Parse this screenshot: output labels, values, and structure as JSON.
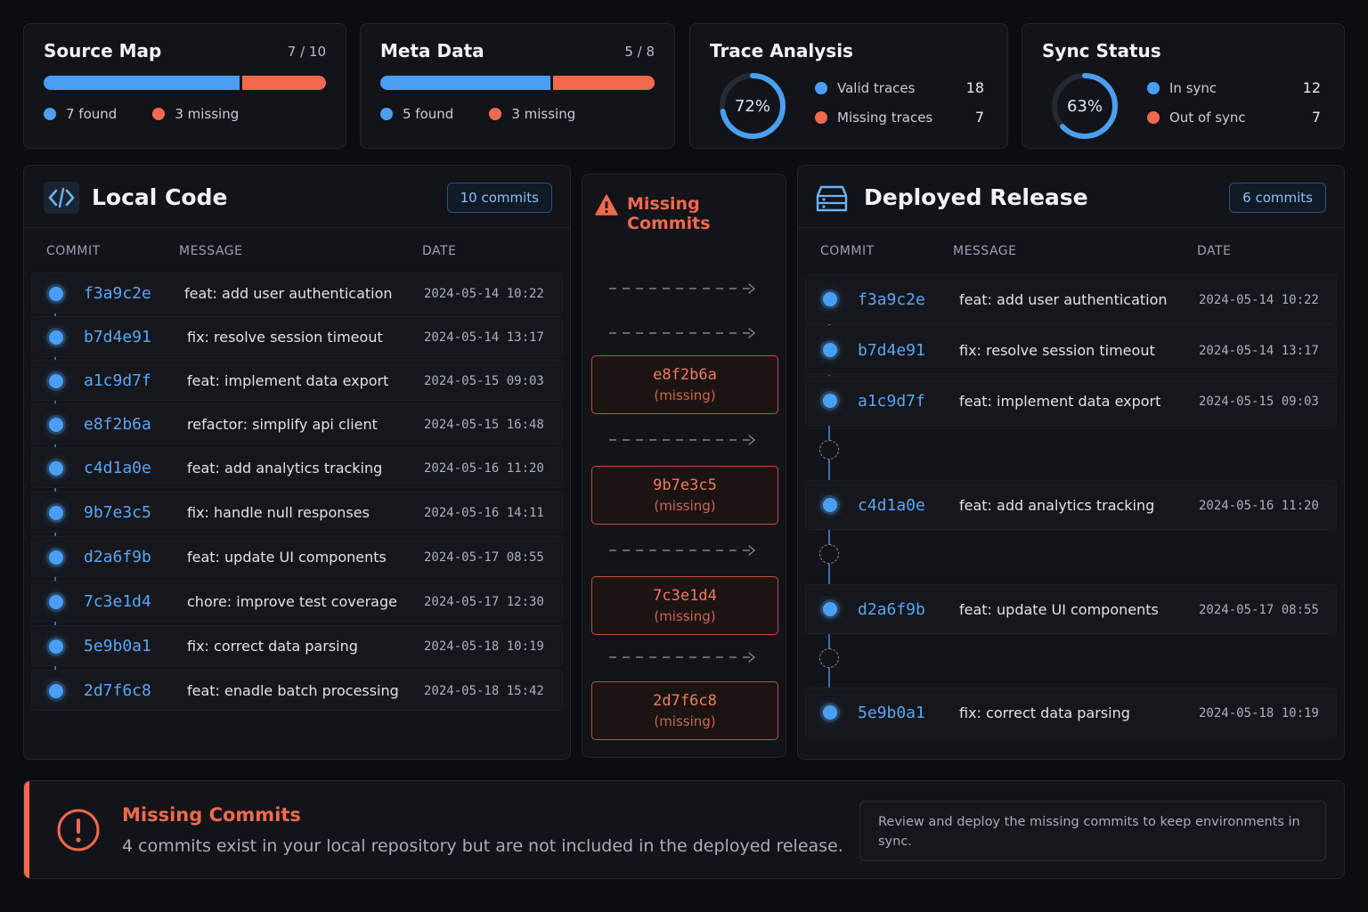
{
  "stats": {
    "source_map": {
      "title": "Source Map",
      "count": "7 / 10",
      "found": 7,
      "missing": 3,
      "found_label": "7 found",
      "missing_label": "3 missing"
    },
    "meta_data": {
      "title": "Meta Data",
      "count": "5 / 8",
      "found": 5,
      "missing": 3,
      "found_label": "5 found",
      "missing_label": "3 missing"
    },
    "trace_analysis": {
      "title": "Trace Analysis",
      "percent": 72,
      "percent_label": "72%",
      "rows": [
        {
          "label": "Valid traces",
          "value": "18"
        },
        {
          "label": "Missing traces",
          "value": "7"
        }
      ]
    },
    "sync_status": {
      "title": "Sync Status",
      "percent": 63,
      "percent_label": "63%",
      "rows": [
        {
          "label": "In sync",
          "value": "12"
        },
        {
          "label": "Out of sync",
          "value": "7"
        }
      ]
    }
  },
  "local": {
    "title": "Local Code",
    "icon": "code-icon",
    "badge": "10 commits",
    "columns": [
      "COMMIT",
      "MESSAGE",
      "DATE"
    ],
    "commits": [
      {
        "hash": "f3a9c2e",
        "message": "feat: add user authentication",
        "date": "2024-05-14 10:22"
      },
      {
        "hash": "b7d4e91",
        "message": "fix: resolve session timeout",
        "date": "2024-05-14 13:17"
      },
      {
        "hash": "a1c9d7f",
        "message": "feat: implement data export",
        "date": "2024-05-15 09:03"
      },
      {
        "hash": "e8f2b6a",
        "message": "refactor: simplify api client",
        "date": "2024-05-15 16:48"
      },
      {
        "hash": "c4d1a0e",
        "message": "feat: add analytics tracking",
        "date": "2024-05-16 11:20"
      },
      {
        "hash": "9b7e3c5",
        "message": "fix: handle null responses",
        "date": "2024-05-16 14:11"
      },
      {
        "hash": "d2a6f9b",
        "message": "feat: update UI components",
        "date": "2024-05-17 08:55"
      },
      {
        "hash": "7c3e1d4",
        "message": "chore: improve test coverage",
        "date": "2024-05-17 12:30"
      },
      {
        "hash": "5e9b0a1",
        "message": "fix: correct data parsing",
        "date": "2024-05-18 10:19"
      },
      {
        "hash": "2d7f6c8",
        "message": "feat: enadle batch processing",
        "date": "2024-05-18 15:42"
      }
    ]
  },
  "missing": {
    "title": "Missing Commits",
    "icon": "warning-icon",
    "items": [
      {
        "hash": "e8f2b6a",
        "status": "(missing)"
      },
      {
        "hash": "9b7e3c5",
        "status": "(missing)"
      },
      {
        "hash": "7c3e1d4",
        "status": "(missing)"
      },
      {
        "hash": "2d7f6c8",
        "status": "(missing)"
      }
    ]
  },
  "deployed": {
    "title": "Deployed Release",
    "icon": "server-icon",
    "badge": "6 commits",
    "columns": [
      "COMMIT",
      "MESSAGE",
      "DATE"
    ],
    "commits": [
      {
        "hash": "f3a9c2e",
        "message": "feat: add user authentication",
        "date": "2024-05-14 10:22"
      },
      {
        "hash": "b7d4e91",
        "message": "fix: resolve session timeout",
        "date": "2024-05-14 13:17"
      },
      {
        "hash": "a1c9d7f",
        "message": "feat: implement data export",
        "date": "2024-05-15 09:03"
      },
      {
        "hash": "c4d1a0e",
        "message": "feat: add analytics tracking",
        "date": "2024-05-16 11:20"
      },
      {
        "hash": "d2a6f9b",
        "message": "feat: update UI components",
        "date": "2024-05-17 08:55"
      },
      {
        "hash": "5e9b0a1",
        "message": "fix: correct data parsing",
        "date": "2024-05-18 10:19"
      }
    ]
  },
  "banner": {
    "icon": "alert-circle-icon",
    "title": "Missing Commits",
    "text": "4 commits exist in your local repository but are not included in the deployed release.",
    "note": "Review and deploy the missing commits to keep environments in sync."
  },
  "colors": {
    "accent_blue": "#4a9ff2",
    "accent_red": "#f2694e",
    "background": "#0c0d11"
  }
}
